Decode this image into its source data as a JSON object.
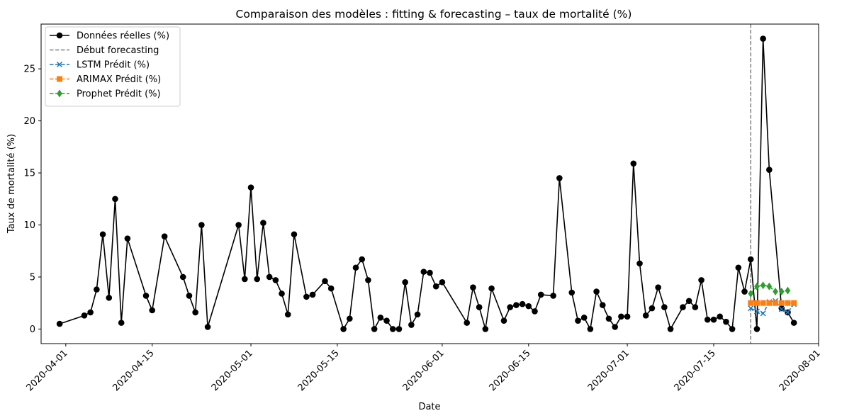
{
  "chart_data": {
    "type": "line",
    "title": "Comparaison des modèles : fitting & forecasting – taux de mortalité (%)",
    "xlabel": "Date",
    "ylabel": "Taux de mortalité (%)",
    "xlim": [
      "2020-03-28",
      "2020-08-01"
    ],
    "ylim": [
      -1.4,
      29.3
    ],
    "grid": false,
    "legend_position": "top-left",
    "x_ticks": [
      "2020-04-01",
      "2020-04-15",
      "2020-05-01",
      "2020-05-15",
      "2020-06-01",
      "2020-06-15",
      "2020-07-01",
      "2020-07-15",
      "2020-08-01"
    ],
    "y_ticks": [
      0,
      5,
      10,
      15,
      20,
      25
    ],
    "forecast_start": "2020-07-21",
    "forecast_label": "Début forecasting",
    "series": [
      {
        "name": "Données réelles (%)",
        "color": "#000000",
        "marker": "circle",
        "points": [
          [
            "2020-03-31",
            0.5
          ],
          [
            "2020-04-04",
            1.3
          ],
          [
            "2020-04-05",
            1.6
          ],
          [
            "2020-04-06",
            3.8
          ],
          [
            "2020-04-07",
            9.1
          ],
          [
            "2020-04-08",
            3.0
          ],
          [
            "2020-04-09",
            12.5
          ],
          [
            "2020-04-10",
            0.6
          ],
          [
            "2020-04-11",
            8.7
          ],
          [
            "2020-04-14",
            3.2
          ],
          [
            "2020-04-15",
            1.8
          ],
          [
            "2020-04-17",
            8.9
          ],
          [
            "2020-04-20",
            5.0
          ],
          [
            "2020-04-21",
            3.2
          ],
          [
            "2020-04-22",
            1.6
          ],
          [
            "2020-04-23",
            10.0
          ],
          [
            "2020-04-24",
            0.2
          ],
          [
            "2020-04-29",
            10.0
          ],
          [
            "2020-04-30",
            4.8
          ],
          [
            "2020-05-01",
            13.6
          ],
          [
            "2020-05-02",
            4.8
          ],
          [
            "2020-05-03",
            10.2
          ],
          [
            "2020-05-04",
            5.0
          ],
          [
            "2020-05-05",
            4.7
          ],
          [
            "2020-05-06",
            3.4
          ],
          [
            "2020-05-07",
            1.4
          ],
          [
            "2020-05-08",
            9.1
          ],
          [
            "2020-05-10",
            3.1
          ],
          [
            "2020-05-11",
            3.3
          ],
          [
            "2020-05-13",
            4.6
          ],
          [
            "2020-05-14",
            3.9
          ],
          [
            "2020-05-16",
            0.0
          ],
          [
            "2020-05-17",
            1.0
          ],
          [
            "2020-05-18",
            5.9
          ],
          [
            "2020-05-19",
            6.7
          ],
          [
            "2020-05-20",
            4.7
          ],
          [
            "2020-05-21",
            0.0
          ],
          [
            "2020-05-22",
            1.1
          ],
          [
            "2020-05-23",
            0.8
          ],
          [
            "2020-05-24",
            0.0
          ],
          [
            "2020-05-25",
            0.0
          ],
          [
            "2020-05-26",
            4.5
          ],
          [
            "2020-05-27",
            0.4
          ],
          [
            "2020-05-28",
            1.4
          ],
          [
            "2020-05-29",
            5.5
          ],
          [
            "2020-05-30",
            5.4
          ],
          [
            "2020-05-31",
            4.1
          ],
          [
            "2020-06-01",
            4.5
          ],
          [
            "2020-06-05",
            0.6
          ],
          [
            "2020-06-06",
            4.0
          ],
          [
            "2020-06-07",
            2.1
          ],
          [
            "2020-06-08",
            0.0
          ],
          [
            "2020-06-09",
            3.9
          ],
          [
            "2020-06-11",
            0.8
          ],
          [
            "2020-06-12",
            2.1
          ],
          [
            "2020-06-13",
            2.3
          ],
          [
            "2020-06-14",
            2.4
          ],
          [
            "2020-06-15",
            2.2
          ],
          [
            "2020-06-16",
            1.7
          ],
          [
            "2020-06-17",
            3.3
          ],
          [
            "2020-06-19",
            3.2
          ],
          [
            "2020-06-20",
            14.5
          ],
          [
            "2020-06-22",
            3.5
          ],
          [
            "2020-06-23",
            0.8
          ],
          [
            "2020-06-24",
            1.1
          ],
          [
            "2020-06-25",
            0.0
          ],
          [
            "2020-06-26",
            3.6
          ],
          [
            "2020-06-27",
            2.3
          ],
          [
            "2020-06-28",
            1.0
          ],
          [
            "2020-06-29",
            0.2
          ],
          [
            "2020-06-30",
            1.2
          ],
          [
            "2020-07-01",
            1.2
          ],
          [
            "2020-07-02",
            15.9
          ],
          [
            "2020-07-03",
            6.3
          ],
          [
            "2020-07-04",
            1.3
          ],
          [
            "2020-07-05",
            2.0
          ],
          [
            "2020-07-06",
            4.0
          ],
          [
            "2020-07-07",
            2.1
          ],
          [
            "2020-07-08",
            0.0
          ],
          [
            "2020-07-10",
            2.1
          ],
          [
            "2020-07-11",
            2.7
          ],
          [
            "2020-07-12",
            2.1
          ],
          [
            "2020-07-13",
            4.7
          ],
          [
            "2020-07-14",
            0.9
          ],
          [
            "2020-07-15",
            0.9
          ],
          [
            "2020-07-16",
            1.2
          ],
          [
            "2020-07-17",
            0.7
          ],
          [
            "2020-07-18",
            0.0
          ],
          [
            "2020-07-19",
            5.9
          ],
          [
            "2020-07-20",
            3.6
          ],
          [
            "2020-07-21",
            6.7
          ],
          [
            "2020-07-22",
            0.0
          ],
          [
            "2020-07-23",
            27.9
          ],
          [
            "2020-07-24",
            15.3
          ],
          [
            "2020-07-26",
            2.0
          ],
          [
            "2020-07-27",
            1.6
          ],
          [
            "2020-07-28",
            0.6
          ]
        ]
      },
      {
        "name": "LSTM Prédit (%)",
        "color": "#1f77b4",
        "marker": "x",
        "linestyle": "dashed",
        "points": [
          [
            "2020-07-21",
            2.0
          ],
          [
            "2020-07-22",
            1.7
          ],
          [
            "2020-07-23",
            1.5
          ],
          [
            "2020-07-24",
            2.6
          ],
          [
            "2020-07-25",
            2.7
          ],
          [
            "2020-07-26",
            1.9
          ],
          [
            "2020-07-27",
            1.6
          ],
          [
            "2020-07-28",
            2.4
          ]
        ]
      },
      {
        "name": "ARIMAX Prédit (%)",
        "color": "#ff7f0e",
        "marker": "square",
        "linestyle": "dashed",
        "points": [
          [
            "2020-07-21",
            2.5
          ],
          [
            "2020-07-22",
            2.5
          ],
          [
            "2020-07-23",
            2.5
          ],
          [
            "2020-07-24",
            2.5
          ],
          [
            "2020-07-25",
            2.5
          ],
          [
            "2020-07-26",
            2.5
          ],
          [
            "2020-07-27",
            2.5
          ],
          [
            "2020-07-28",
            2.5
          ]
        ]
      },
      {
        "name": "Prophet Prédit (%)",
        "color": "#2ca02c",
        "marker": "diamond",
        "linestyle": "dashed",
        "points": [
          [
            "2020-07-21",
            3.4
          ],
          [
            "2020-07-22",
            4.1
          ],
          [
            "2020-07-23",
            4.2
          ],
          [
            "2020-07-24",
            4.1
          ],
          [
            "2020-07-25",
            3.6
          ],
          [
            "2020-07-26",
            3.6
          ],
          [
            "2020-07-27",
            3.7
          ]
        ]
      }
    ]
  }
}
